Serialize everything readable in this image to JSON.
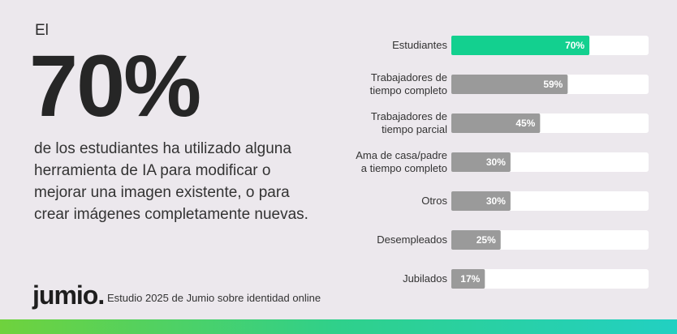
{
  "headline": {
    "intro": "El",
    "big_value": "70%",
    "description": "de los estudiantes ha utilizado alguna herramienta de IA para modificar o mejorar una imagen existente, o para crear imágenes completamente nuevas."
  },
  "footer": {
    "logo_text": "jumio",
    "caption": "Estudio 2025 de Jumio sobre identidad online"
  },
  "colors": {
    "highlight": "#13d08f",
    "bar": "#9a9a9a",
    "track": "#ffffff",
    "background": "#ece8ed"
  },
  "chart_data": {
    "type": "bar",
    "orientation": "horizontal",
    "categories": [
      [
        "Estudiantes"
      ],
      [
        "Trabajadores de",
        "tiempo completo"
      ],
      [
        "Trabajadores de",
        "tiempo parcial"
      ],
      [
        "Ama de casa/padre",
        "a tiempo completo"
      ],
      [
        "Otros"
      ],
      [
        "Desempleados"
      ],
      [
        "Jubilados"
      ]
    ],
    "values": [
      70,
      59,
      45,
      30,
      30,
      25,
      17
    ],
    "value_labels": [
      "70%",
      "59%",
      "45%",
      "30%",
      "30%",
      "25%",
      "17%"
    ],
    "highlight_index": 0,
    "xlim": [
      0,
      100
    ],
    "grid": false
  }
}
